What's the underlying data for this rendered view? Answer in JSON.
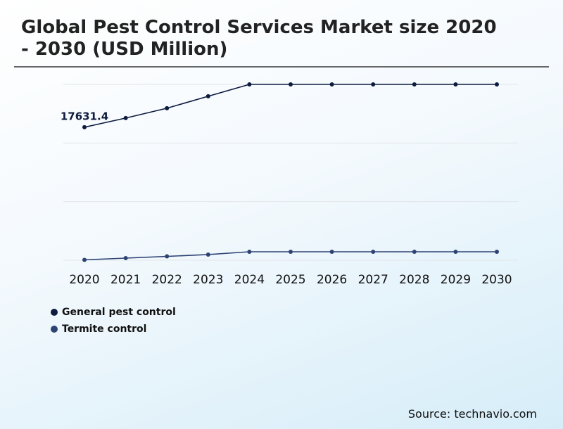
{
  "chart_data": {
    "type": "line",
    "title": "Global Pest Control Services Market size 2020 - 2030 (USD Million)",
    "source": "Source: technavio.com",
    "categories": [
      "2020",
      "2021",
      "2022",
      "2023",
      "2024",
      "2025",
      "2026",
      "2027",
      "2028",
      "2029",
      "2030"
    ],
    "series": [
      {
        "name": "General pest control",
        "color": "#0d1b3e",
        "values": [
          17631.4,
          18845,
          20150,
          21740,
          23310,
          23310,
          23310,
          23310,
          23310,
          23310,
          23310
        ]
      },
      {
        "name": "Termite control",
        "color": "#2e4374",
        "values": [
          50,
          280,
          510,
          750,
          1120,
          1120,
          1120,
          1120,
          1120,
          1120,
          1120
        ]
      }
    ],
    "ylim": [
      0,
      23310
    ],
    "ygrid": [
      0,
      7770,
      15540,
      23310
    ]
  }
}
